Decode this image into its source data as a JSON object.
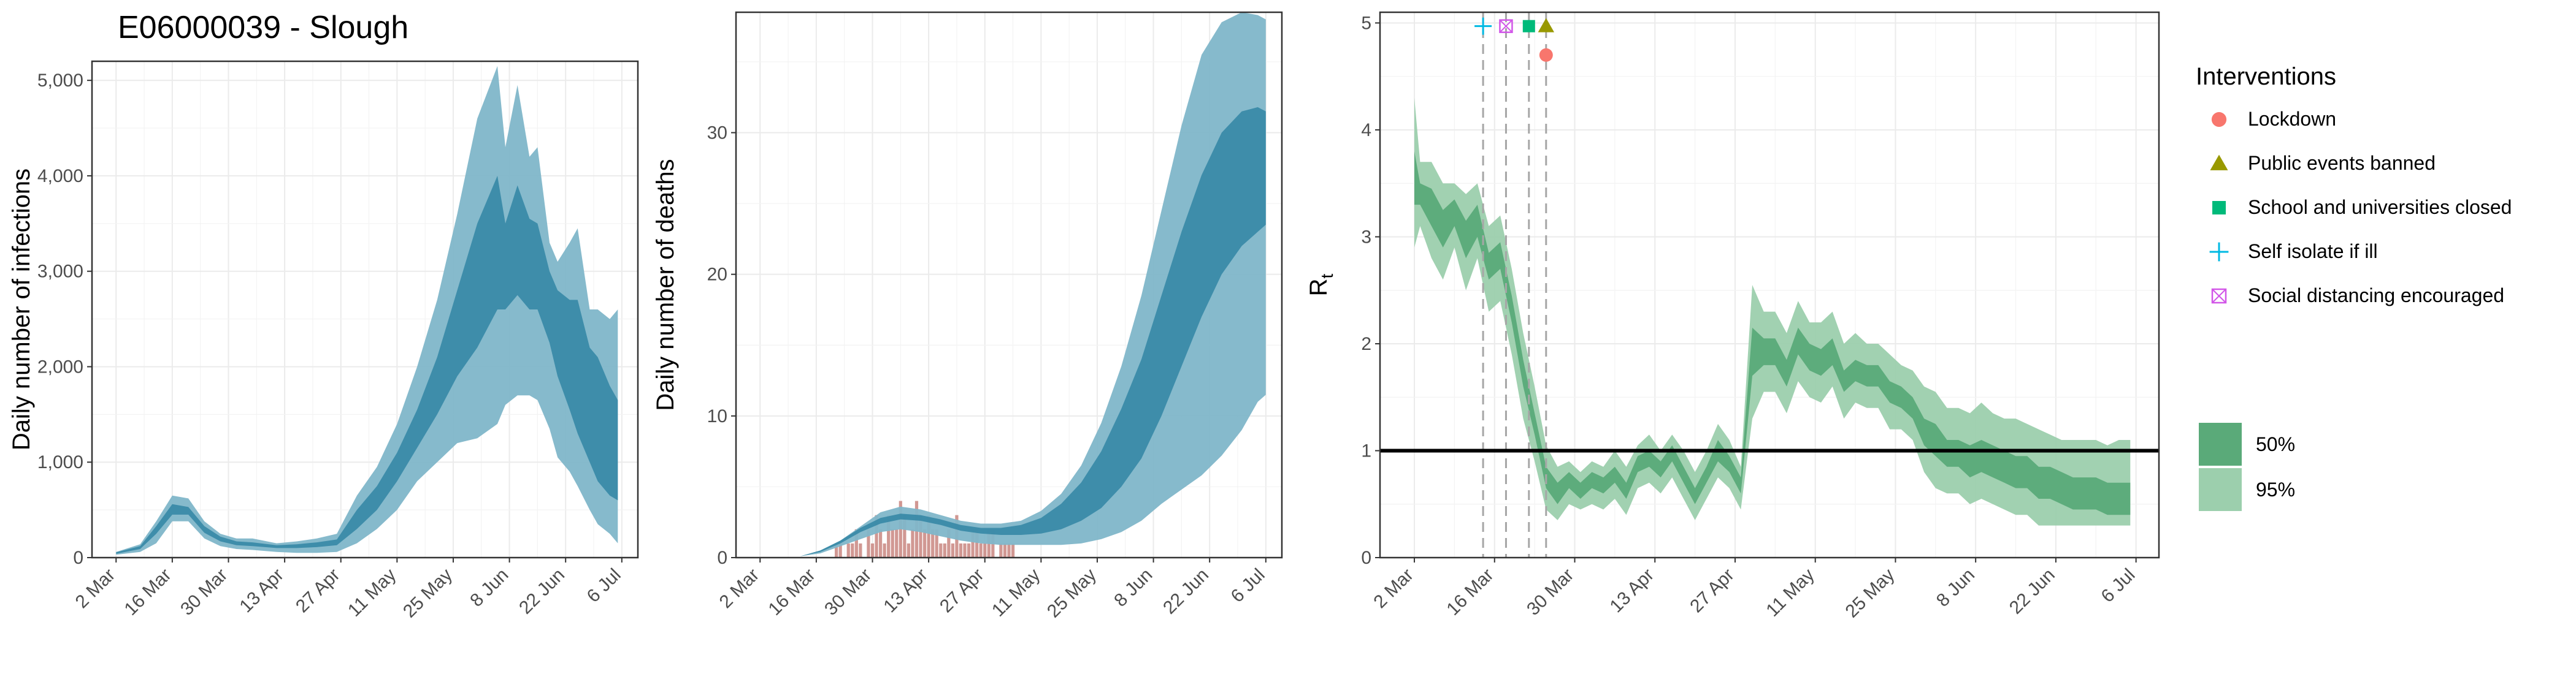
{
  "chart_data": [
    {
      "type": "area",
      "title": "E06000039 - Slough",
      "ylabel": "Daily number of infections",
      "xlabel": "",
      "x_ticks": [
        "2 Mar",
        "16 Mar",
        "30 Mar",
        "13 Apr",
        "27 Apr",
        "11 May",
        "25 May",
        "8 Jun",
        "22 Jun",
        "6 Jul"
      ],
      "x_range_days": [
        -6,
        130
      ],
      "y_ticks": [
        "0",
        "1,000",
        "2,000",
        "3,000",
        "4,000",
        "5,000"
      ],
      "ylim": [
        0,
        5200
      ],
      "grid": true,
      "colors": {
        "band95": "#7fb6c9",
        "band50": "#3a8aa8",
        "median": "#2c7d9a"
      },
      "series": [
        {
          "name": "95%",
          "x_day": [
            0,
            6,
            10,
            14,
            18,
            22,
            26,
            30,
            34,
            40,
            45,
            50,
            55,
            60,
            65,
            70,
            75,
            80,
            85,
            90,
            95,
            97,
            100,
            103,
            105,
            108,
            110,
            113,
            115,
            118,
            120,
            123,
            125
          ],
          "lower": [
            30,
            60,
            150,
            380,
            380,
            200,
            120,
            90,
            80,
            60,
            50,
            50,
            60,
            150,
            300,
            500,
            800,
            1000,
            1200,
            1250,
            1400,
            1600,
            1700,
            1700,
            1650,
            1350,
            1050,
            900,
            750,
            500,
            350,
            250,
            150
          ],
          "upper": [
            60,
            140,
            380,
            650,
            620,
            380,
            250,
            200,
            200,
            150,
            170,
            200,
            250,
            650,
            950,
            1400,
            2000,
            2700,
            3600,
            4600,
            5150,
            4300,
            4950,
            4200,
            4300,
            3300,
            3100,
            3300,
            3450,
            2600,
            2600,
            2500,
            2600
          ]
        },
        {
          "name": "50%",
          "x_day": [
            0,
            6,
            10,
            14,
            18,
            22,
            26,
            30,
            34,
            40,
            45,
            50,
            55,
            60,
            65,
            70,
            75,
            80,
            85,
            90,
            95,
            97,
            100,
            103,
            105,
            108,
            110,
            113,
            115,
            118,
            120,
            123,
            125
          ],
          "lower": [
            40,
            90,
            250,
            450,
            450,
            260,
            170,
            130,
            120,
            100,
            100,
            110,
            130,
            300,
            500,
            800,
            1150,
            1500,
            1900,
            2200,
            2600,
            2600,
            2750,
            2600,
            2600,
            2250,
            1900,
            1550,
            1300,
            1000,
            800,
            650,
            600
          ],
          "upper": [
            55,
            120,
            330,
            560,
            530,
            330,
            220,
            170,
            160,
            130,
            140,
            160,
            190,
            500,
            750,
            1100,
            1550,
            2100,
            2800,
            3500,
            4000,
            3500,
            3900,
            3550,
            3500,
            3000,
            2800,
            2700,
            2700,
            2200,
            2100,
            1800,
            1650
          ]
        }
      ]
    },
    {
      "type": "area",
      "title": "",
      "ylabel": "Daily number of deaths",
      "xlabel": "",
      "x_ticks": [
        "2 Mar",
        "16 Mar",
        "30 Mar",
        "13 Apr",
        "27 Apr",
        "11 May",
        "25 May",
        "8 Jun",
        "22 Jun",
        "6 Jul"
      ],
      "x_range_days": [
        -6,
        130
      ],
      "y_ticks": [
        "0",
        "10",
        "20",
        "30"
      ],
      "ylim": [
        0,
        38.5
      ],
      "grid": true,
      "colors": {
        "band95": "#7fb6c9",
        "band50": "#3a8aa8",
        "median": "#2c7d9a",
        "observed": "#c98680"
      },
      "series": [
        {
          "name": "95%",
          "x_day": [
            0,
            10,
            15,
            20,
            25,
            30,
            35,
            40,
            45,
            50,
            55,
            60,
            65,
            70,
            75,
            80,
            85,
            90,
            95,
            100,
            105,
            110,
            115,
            120,
            124,
            126
          ],
          "lower": [
            0,
            0.1,
            0.3,
            0.8,
            1.3,
            1.8,
            2.0,
            1.8,
            1.5,
            1.2,
            1.0,
            0.9,
            0.9,
            0.9,
            0.9,
            1.0,
            1.3,
            1.8,
            2.6,
            3.8,
            4.8,
            5.8,
            7.2,
            9.0,
            11.0,
            11.5
          ],
          "upper": [
            0,
            0.1,
            0.5,
            1.2,
            2.2,
            3.2,
            3.6,
            3.4,
            3.0,
            2.6,
            2.4,
            2.4,
            2.6,
            3.3,
            4.5,
            6.5,
            9.5,
            13.5,
            18.5,
            24.5,
            30.5,
            35.5,
            37.8,
            38.5,
            38.3,
            38.0
          ]
        },
        {
          "name": "50%",
          "x_day": [
            0,
            10,
            15,
            20,
            25,
            30,
            35,
            40,
            45,
            50,
            55,
            60,
            65,
            70,
            75,
            80,
            85,
            90,
            95,
            100,
            105,
            110,
            115,
            120,
            124,
            126
          ],
          "lower": [
            0,
            0.1,
            0.4,
            1.0,
            1.8,
            2.4,
            2.7,
            2.6,
            2.3,
            1.9,
            1.7,
            1.6,
            1.6,
            1.7,
            2.0,
            2.6,
            3.5,
            5.0,
            7.0,
            10.0,
            13.5,
            17.0,
            20.0,
            22.0,
            23.0,
            23.5
          ],
          "upper": [
            0,
            0.1,
            0.5,
            1.2,
            2.1,
            2.8,
            3.1,
            3.0,
            2.7,
            2.3,
            2.1,
            2.1,
            2.3,
            2.8,
            3.8,
            5.3,
            7.5,
            10.5,
            14.0,
            18.5,
            23.0,
            27.0,
            30.0,
            31.5,
            31.8,
            31.5
          ]
        }
      ],
      "observed_deaths": {
        "x_day": [
          19,
          20,
          21,
          22,
          23,
          24,
          25,
          26,
          27,
          28,
          29,
          30,
          31,
          32,
          33,
          34,
          35,
          36,
          37,
          38,
          39,
          40,
          41,
          42,
          43,
          44,
          45,
          46,
          47,
          48,
          49,
          50,
          51,
          52,
          53,
          54,
          55,
          56,
          57,
          58,
          59,
          60,
          61,
          62,
          63
        ],
        "value": [
          1,
          1,
          0,
          1,
          1,
          2,
          1,
          0,
          2,
          1,
          3,
          2,
          1,
          3,
          2,
          2,
          4,
          3,
          1,
          2,
          4,
          3,
          2,
          3,
          2,
          2,
          1,
          1,
          2,
          1,
          3,
          1,
          1,
          1,
          2,
          2,
          1,
          1,
          2,
          2,
          0,
          1,
          1,
          1,
          1
        ]
      }
    },
    {
      "type": "area",
      "title": "",
      "ylabel": "R",
      "ylabel_subscript": "t",
      "xlabel": "",
      "x_ticks": [
        "2 Mar",
        "16 Mar",
        "30 Mar",
        "13 Apr",
        "27 Apr",
        "11 May",
        "25 May",
        "8 Jun",
        "22 Jun",
        "6 Jul"
      ],
      "x_range_days": [
        -6,
        130
      ],
      "y_ticks": [
        "0",
        "1",
        "2",
        "3",
        "4",
        "5"
      ],
      "ylim": [
        0,
        5.1
      ],
      "grid": true,
      "reference_line_y": 1,
      "colors": {
        "band95": "#9ccfad",
        "band50": "#5aaa79",
        "reference": "#000000",
        "vline": "#a6a6a6"
      },
      "series": [
        {
          "name": "95%",
          "x_day": [
            0,
            1,
            3,
            5,
            7,
            9,
            11,
            13,
            15,
            17,
            19,
            21,
            23,
            25,
            27,
            29,
            31,
            33,
            35,
            37,
            39,
            41,
            43,
            45,
            47,
            49,
            51,
            53,
            55,
            57,
            59,
            61,
            63,
            65,
            67,
            69,
            71,
            73,
            75,
            77,
            79,
            81,
            83,
            85,
            87,
            89,
            91,
            93,
            95,
            97,
            99,
            101,
            103,
            105,
            107,
            109,
            111,
            113,
            115,
            117,
            119,
            121,
            123,
            125
          ],
          "lower": [
            2.9,
            3.1,
            2.8,
            2.6,
            2.9,
            2.5,
            2.8,
            2.3,
            2.4,
            1.9,
            1.3,
            0.9,
            0.45,
            0.35,
            0.5,
            0.45,
            0.5,
            0.45,
            0.55,
            0.4,
            0.65,
            0.7,
            0.6,
            0.75,
            0.55,
            0.35,
            0.55,
            0.75,
            0.65,
            0.45,
            1.3,
            1.55,
            1.55,
            1.35,
            1.65,
            1.5,
            1.45,
            1.6,
            1.3,
            1.45,
            1.4,
            1.4,
            1.2,
            1.2,
            1.1,
            0.8,
            0.65,
            0.6,
            0.6,
            0.5,
            0.55,
            0.5,
            0.45,
            0.4,
            0.4,
            0.3,
            0.3,
            0.3,
            0.3,
            0.3,
            0.3,
            0.3,
            0.3,
            0.3
          ],
          "upper": [
            4.3,
            3.7,
            3.7,
            3.5,
            3.5,
            3.4,
            3.5,
            3.1,
            3.2,
            2.7,
            2.1,
            1.6,
            1.05,
            0.85,
            0.9,
            0.8,
            0.9,
            0.85,
            1.0,
            0.85,
            1.05,
            1.15,
            1.0,
            1.15,
            1.0,
            0.8,
            1.0,
            1.25,
            1.1,
            0.85,
            2.55,
            2.3,
            2.3,
            2.1,
            2.4,
            2.2,
            2.2,
            2.3,
            2.0,
            2.1,
            2.0,
            2.0,
            1.9,
            1.8,
            1.75,
            1.6,
            1.55,
            1.4,
            1.4,
            1.35,
            1.45,
            1.35,
            1.3,
            1.3,
            1.25,
            1.2,
            1.15,
            1.1,
            1.1,
            1.1,
            1.1,
            1.05,
            1.1,
            1.1
          ]
        },
        {
          "name": "50%",
          "x_day": [
            0,
            1,
            3,
            5,
            7,
            9,
            11,
            13,
            15,
            17,
            19,
            21,
            23,
            25,
            27,
            29,
            31,
            33,
            35,
            37,
            39,
            41,
            43,
            45,
            47,
            49,
            51,
            53,
            55,
            57,
            59,
            61,
            63,
            65,
            67,
            69,
            71,
            73,
            75,
            77,
            79,
            81,
            83,
            85,
            87,
            89,
            91,
            93,
            95,
            97,
            99,
            101,
            103,
            105,
            107,
            109,
            111,
            113,
            115,
            117,
            119,
            121,
            123,
            125
          ],
          "lower": [
            3.3,
            3.3,
            3.1,
            2.9,
            3.1,
            2.8,
            3.0,
            2.6,
            2.7,
            2.2,
            1.6,
            1.15,
            0.65,
            0.5,
            0.65,
            0.55,
            0.65,
            0.6,
            0.7,
            0.55,
            0.8,
            0.85,
            0.75,
            0.9,
            0.7,
            0.5,
            0.7,
            0.9,
            0.8,
            0.6,
            1.7,
            1.8,
            1.8,
            1.6,
            1.9,
            1.75,
            1.7,
            1.8,
            1.55,
            1.65,
            1.6,
            1.6,
            1.45,
            1.4,
            1.3,
            1.05,
            0.95,
            0.85,
            0.85,
            0.75,
            0.8,
            0.75,
            0.7,
            0.65,
            0.65,
            0.55,
            0.55,
            0.5,
            0.45,
            0.45,
            0.45,
            0.4,
            0.4,
            0.4
          ],
          "upper": [
            3.8,
            3.5,
            3.45,
            3.25,
            3.35,
            3.15,
            3.3,
            2.85,
            2.95,
            2.45,
            1.85,
            1.35,
            0.85,
            0.7,
            0.8,
            0.7,
            0.8,
            0.75,
            0.85,
            0.7,
            0.95,
            1.0,
            0.9,
            1.05,
            0.85,
            0.65,
            0.85,
            1.1,
            0.95,
            0.75,
            2.15,
            2.05,
            2.05,
            1.85,
            2.15,
            2.0,
            1.95,
            2.05,
            1.75,
            1.85,
            1.8,
            1.8,
            1.65,
            1.6,
            1.5,
            1.3,
            1.25,
            1.1,
            1.1,
            1.05,
            1.1,
            1.05,
            1.0,
            0.95,
            0.95,
            0.85,
            0.85,
            0.8,
            0.75,
            0.75,
            0.75,
            0.7,
            0.7,
            0.7
          ]
        }
      ],
      "interventions": [
        {
          "name": "Self isolate if ill",
          "x_day": 12,
          "y": 4.97,
          "color": "#00b9e3",
          "shape": "plus"
        },
        {
          "name": "Social distancing encouraged",
          "x_day": 16,
          "y": 4.97,
          "color": "#d256e8",
          "shape": "square-x"
        },
        {
          "name": "School and universities closed",
          "x_day": 20,
          "y": 4.97,
          "color": "#00ba7a",
          "shape": "square"
        },
        {
          "name": "Public events banned",
          "x_day": 23,
          "y": 4.97,
          "color": "#999900",
          "shape": "triangle"
        },
        {
          "name": "Lockdown",
          "x_day": 23,
          "y": 4.7,
          "color": "#f8766d",
          "shape": "circle"
        }
      ]
    }
  ],
  "legend": {
    "interventions_title": "Interventions",
    "items": [
      {
        "label": "Lockdown",
        "color": "#f8766d",
        "shape": "circle"
      },
      {
        "label": "Public events banned",
        "color": "#999900",
        "shape": "triangle"
      },
      {
        "label": "School and universities closed",
        "color": "#00ba7a",
        "shape": "square"
      },
      {
        "label": "Self isolate if ill",
        "color": "#00b9e3",
        "shape": "plus"
      },
      {
        "label": "Social distancing encouraged",
        "color": "#d256e8",
        "shape": "square-x"
      }
    ],
    "bands": [
      {
        "label": "50%",
        "color": "#5aaa79"
      },
      {
        "label": "95%",
        "color": "#9ccfad"
      }
    ]
  }
}
